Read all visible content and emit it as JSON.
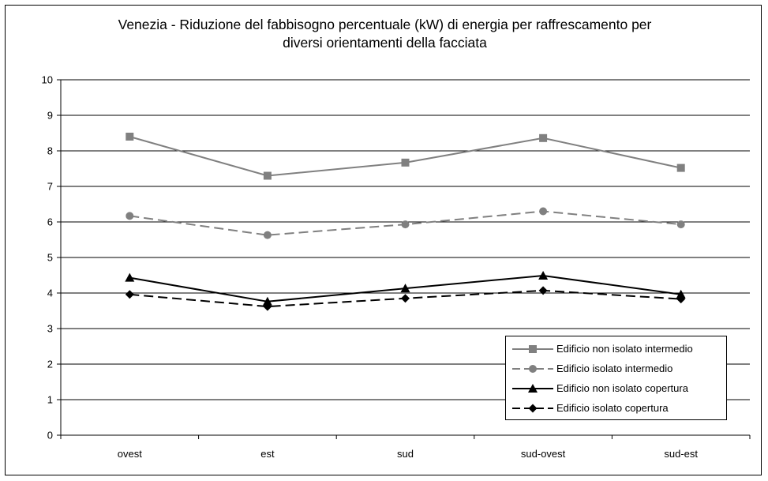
{
  "chart_data": {
    "type": "line",
    "title_lines": [
      "Venezia - Riduzione del fabbisogno percentuale (kW) di energia per raffrescamento per",
      "diversi orientamenti della facciata"
    ],
    "categories": [
      "ovest",
      "est",
      "sud",
      "sud-ovest",
      "sud-est"
    ],
    "ylim": [
      0,
      10
    ],
    "yticks": [
      "0",
      "1",
      "2",
      "3",
      "4",
      "5",
      "6",
      "7",
      "8",
      "9",
      "10"
    ],
    "grid": true,
    "legend_position": "bottom-right",
    "series": [
      {
        "name": "Edificio non isolato intermedio",
        "values": [
          8.4,
          7.3,
          7.67,
          8.36,
          7.52
        ],
        "color": "#808080",
        "marker": "square",
        "dash": "solid"
      },
      {
        "name": "Edificio isolato intermedio",
        "values": [
          6.17,
          5.63,
          5.93,
          6.3,
          5.93
        ],
        "color": "#808080",
        "marker": "circle",
        "dash": "dashed"
      },
      {
        "name": "Edificio non isolato copertura",
        "values": [
          4.43,
          3.76,
          4.13,
          4.49,
          3.96
        ],
        "color": "#000000",
        "marker": "triangle",
        "dash": "solid"
      },
      {
        "name": "Edificio isolato copertura",
        "values": [
          3.96,
          3.62,
          3.85,
          4.07,
          3.83
        ],
        "color": "#000000",
        "marker": "diamond",
        "dash": "dashed"
      }
    ]
  }
}
